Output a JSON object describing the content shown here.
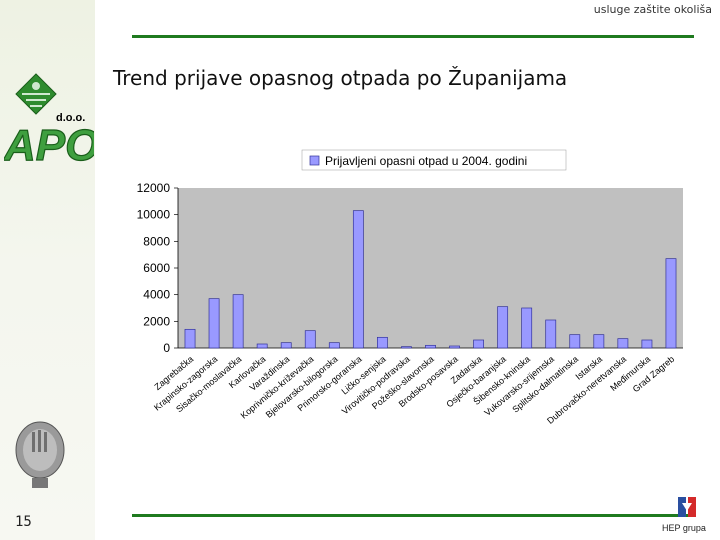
{
  "header": {
    "top_text": "usluge zaštite okoliša"
  },
  "slide": {
    "title": "Trend prijave opasnog otpada po Županijama",
    "page_number": "15"
  },
  "logo": {
    "company_suffix": "d.o.o.",
    "letters": "APO"
  },
  "footer": {
    "brand_text": "HEP grupa"
  },
  "colors": {
    "accent_rule": "#1f7a1f",
    "bar_fill": "#9999ff",
    "bar_stroke": "#333399",
    "plot_bg": "#c0c0c0"
  },
  "chart_data": {
    "type": "bar",
    "title": "",
    "xlabel": "",
    "ylabel": "",
    "ylim": [
      0,
      12000
    ],
    "yticks": [
      0,
      2000,
      4000,
      6000,
      8000,
      10000,
      12000
    ],
    "ytick_labels": [
      "0",
      "2000",
      "4000",
      "6000",
      "8000",
      "10000",
      "12000"
    ],
    "grid": false,
    "legend_position": "top",
    "categories": [
      "Zagrebačka",
      "Krapinsko-zagorska",
      "Sisačko-moslavačka",
      "Karlovačka",
      "Varaždinska",
      "Koprivničko-križevačka",
      "Bjelovarsko-bilogorska",
      "Primorsko-goranska",
      "Ličko-senjska",
      "Virovitičko-podravska",
      "Požeško-slavonska",
      "Brodsko-posavska",
      "Zadarska",
      "Osječko-baranjska",
      "Šibensko-kninska",
      "Vukovarsko-srijemska",
      "Splitsko-dalmatinska",
      "Istarska",
      "Dubrovačko-neretvanska",
      "Međimurska",
      "Grad Zagreb"
    ],
    "series": [
      {
        "name": "Prijavljeni opasni otpad u 2004. godini",
        "values": [
          1400,
          3700,
          4000,
          300,
          400,
          1300,
          400,
          10300,
          800,
          100,
          200,
          150,
          600,
          3100,
          3000,
          2100,
          1000,
          1000,
          700,
          600,
          6700
        ]
      }
    ]
  }
}
